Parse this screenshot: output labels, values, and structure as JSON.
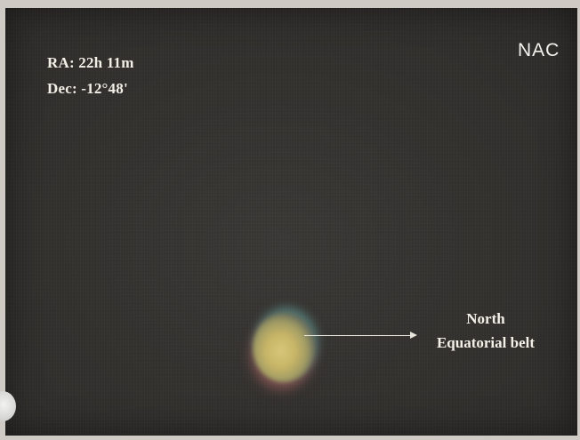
{
  "photo": {
    "ra": "RA: 22h 11m",
    "dec": "Dec: -12°48'",
    "logo": "NAC",
    "annotation": {
      "line1": "North",
      "line2": "Equatorial belt"
    }
  },
  "colors": {
    "sky": "#34322f",
    "text": "#f2efe6",
    "planet": "#c9b667"
  }
}
